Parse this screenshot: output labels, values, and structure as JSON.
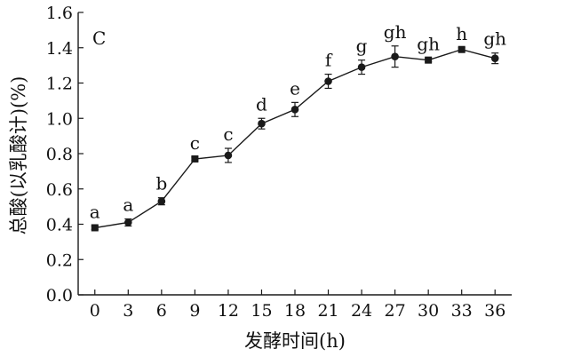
{
  "chart_data": {
    "type": "line",
    "panel_label": "C",
    "title": "",
    "xlabel": "发酵时间(h)",
    "ylabel": "总酸(以乳酸计)(%)",
    "x": [
      0,
      3,
      6,
      9,
      12,
      15,
      18,
      21,
      24,
      27,
      30,
      33,
      36
    ],
    "x_tick_labels": [
      "0",
      "3",
      "6",
      "9",
      "12",
      "15",
      "18",
      "21",
      "24",
      "27",
      "30",
      "33",
      "36"
    ],
    "xlim": [
      -1.5,
      37.5
    ],
    "ylim": [
      0.0,
      1.6
    ],
    "y_tick_labels": [
      "0.0",
      "0.2",
      "0.4",
      "0.6",
      "0.8",
      "1.0",
      "1.2",
      "1.4",
      "1.6"
    ],
    "series": [
      {
        "name": "",
        "values": [
          0.38,
          0.41,
          0.53,
          0.77,
          0.79,
          0.97,
          1.05,
          1.21,
          1.29,
          1.35,
          1.33,
          1.39,
          1.34
        ],
        "errors": [
          0.01,
          0.02,
          0.02,
          0.01,
          0.04,
          0.03,
          0.04,
          0.04,
          0.04,
          0.06,
          0.01,
          0.01,
          0.03
        ],
        "markers": [
          "square",
          "circle",
          "circle",
          "square",
          "circle",
          "circle",
          "circle",
          "circle",
          "circle",
          "circle",
          "square",
          "square",
          "circle"
        ],
        "significance_letters": [
          "a",
          "a",
          "b",
          "c",
          "c",
          "d",
          "e",
          "f",
          "g",
          "gh",
          "gh",
          "h",
          "gh"
        ]
      }
    ],
    "grid": false,
    "legend": "none",
    "colors": {
      "line": "#1a1a1a",
      "axis": "#1a1a1a",
      "text": "#111111"
    }
  }
}
